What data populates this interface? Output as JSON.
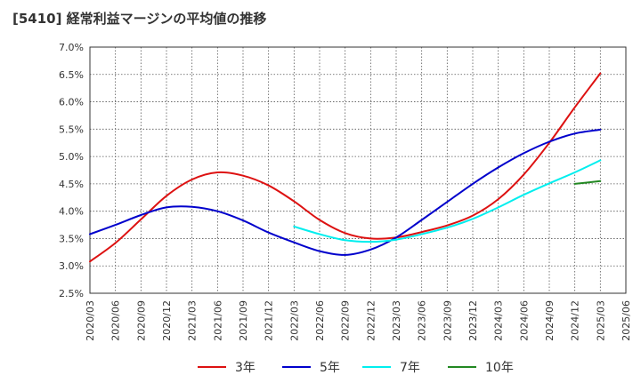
{
  "chart_data": {
    "type": "line",
    "title": "[5410]  経常利益マージンの平均値の推移",
    "xlabel": "",
    "ylabel": "",
    "x_ticks": [
      "2020/03",
      "2020/06",
      "2020/09",
      "2020/12",
      "2021/03",
      "2021/06",
      "2021/09",
      "2021/12",
      "2022/03",
      "2022/06",
      "2022/09",
      "2022/12",
      "2023/03",
      "2023/06",
      "2023/09",
      "2023/12",
      "2024/03",
      "2024/06",
      "2024/09",
      "2024/12",
      "2025/03",
      "2025/06"
    ],
    "y_ticks": [
      2.5,
      3.0,
      3.5,
      4.0,
      4.5,
      5.0,
      5.5,
      6.0,
      6.5,
      7.0
    ],
    "y_tick_labels": [
      "2.5%",
      "3.0%",
      "3.5%",
      "4.0%",
      "4.5%",
      "5.0%",
      "5.5%",
      "6.0%",
      "6.5%",
      "7.0%"
    ],
    "ylim": [
      2.5,
      7.0
    ],
    "grid": true,
    "legend_position": "bottom",
    "series": [
      {
        "name": "3年",
        "color": "#dd1111",
        "x": [
          "2020/03",
          "2020/06",
          "2020/09",
          "2020/12",
          "2021/03",
          "2021/06",
          "2021/09",
          "2021/12",
          "2022/03",
          "2022/06",
          "2022/09",
          "2022/12",
          "2023/03",
          "2023/06",
          "2023/09",
          "2023/12",
          "2024/03",
          "2024/06",
          "2024/09",
          "2024/12",
          "2025/03"
        ],
        "values": [
          3.08,
          3.42,
          3.85,
          4.28,
          4.58,
          4.71,
          4.65,
          4.47,
          4.18,
          3.84,
          3.6,
          3.5,
          3.52,
          3.62,
          3.74,
          3.92,
          4.22,
          4.67,
          5.25,
          5.9,
          6.52
        ]
      },
      {
        "name": "5年",
        "color": "#0000cc",
        "x": [
          "2020/03",
          "2020/06",
          "2020/09",
          "2020/12",
          "2021/03",
          "2021/06",
          "2021/09",
          "2021/12",
          "2022/03",
          "2022/06",
          "2022/09",
          "2022/12",
          "2023/03",
          "2023/06",
          "2023/09",
          "2023/12",
          "2024/03",
          "2024/06",
          "2024/09",
          "2024/12",
          "2025/03"
        ],
        "values": [
          3.58,
          3.75,
          3.93,
          4.07,
          4.08,
          4.0,
          3.83,
          3.61,
          3.43,
          3.27,
          3.2,
          3.3,
          3.52,
          3.84,
          4.17,
          4.5,
          4.8,
          5.06,
          5.27,
          5.42,
          5.49
        ]
      },
      {
        "name": "7年",
        "color": "#00eeee",
        "x": [
          "2022/03",
          "2022/06",
          "2022/09",
          "2022/12",
          "2023/03",
          "2023/06",
          "2023/09",
          "2023/12",
          "2024/03",
          "2024/06",
          "2024/09",
          "2024/12",
          "2025/03"
        ],
        "values": [
          3.72,
          3.58,
          3.47,
          3.44,
          3.48,
          3.58,
          3.7,
          3.86,
          4.07,
          4.3,
          4.51,
          4.71,
          4.93
        ]
      },
      {
        "name": "10年",
        "color": "#228822",
        "x": [
          "2024/12",
          "2025/03"
        ],
        "values": [
          4.5,
          4.55
        ]
      }
    ]
  }
}
